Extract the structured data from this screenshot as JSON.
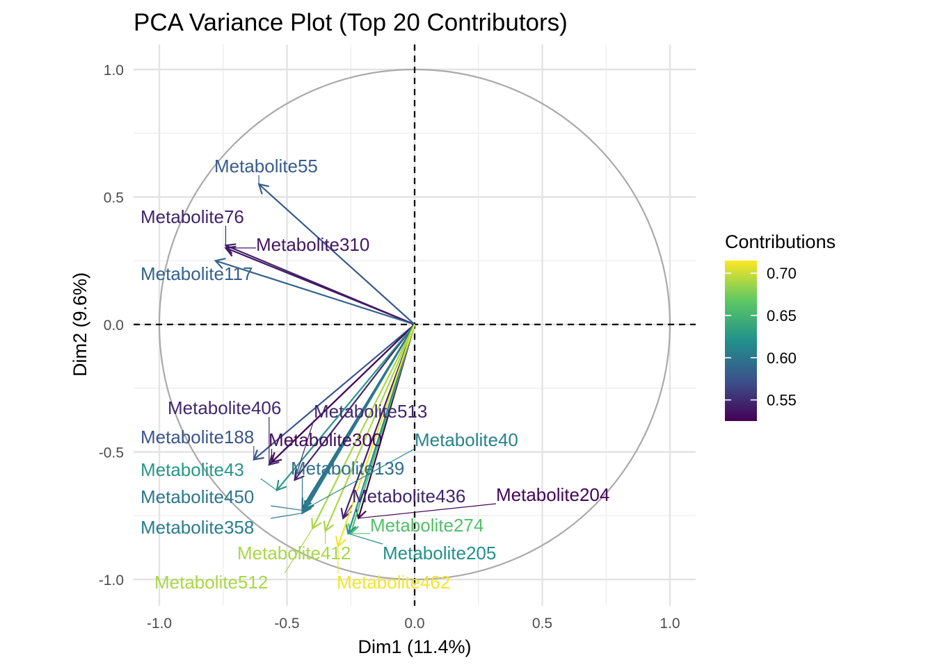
{
  "chart_data": {
    "type": "scatter",
    "subtype": "pca-variable-correlation-circle",
    "title": "PCA Variance Plot (Top 20 Contributors)",
    "xlabel": "Dim1 (11.4%)",
    "ylabel": "Dim2 (9.6%)",
    "xlim": [
      -1.0,
      1.0
    ],
    "ylim": [
      -1.0,
      1.0
    ],
    "x_ticks": [
      -1.0,
      -0.5,
      0.0,
      0.5,
      1.0
    ],
    "y_ticks": [
      -1.0,
      -0.5,
      0.0,
      0.5,
      1.0
    ],
    "x_tick_labels": [
      "-1.0",
      "-0.5",
      "0.0",
      "0.5",
      "1.0"
    ],
    "y_tick_labels": [
      "-1.0",
      "-0.5",
      "0.0",
      "0.5",
      "1.0"
    ],
    "grid": true,
    "unit_circle": true,
    "reference_lines": "dashed at x=0 and y=0",
    "legend": {
      "title": "Contributions",
      "placement": "right",
      "type": "colorbar",
      "ticks": [
        0.55,
        0.6,
        0.65,
        0.7
      ],
      "tick_labels": [
        "0.55",
        "0.60",
        "0.65",
        "0.70"
      ],
      "range": [
        0.525,
        0.715
      ],
      "colormap": [
        "#440154",
        "#3b528b",
        "#21908c",
        "#5dc863",
        "#fde725"
      ]
    },
    "points": [
      {
        "label": "Metabolite55",
        "x": -0.61,
        "y": 0.55,
        "contrib": 0.58
      },
      {
        "label": "Metabolite76",
        "x": -0.74,
        "y": 0.31,
        "contrib": 0.545
      },
      {
        "label": "Metabolite310",
        "x": -0.74,
        "y": 0.3,
        "contrib": 0.538
      },
      {
        "label": "Metabolite117",
        "x": -0.78,
        "y": 0.25,
        "contrib": 0.585
      },
      {
        "label": "Metabolite406",
        "x": -0.57,
        "y": -0.55,
        "contrib": 0.548
      },
      {
        "label": "Metabolite513",
        "x": -0.47,
        "y": -0.61,
        "contrib": 0.548
      },
      {
        "label": "Metabolite188",
        "x": -0.63,
        "y": -0.53,
        "contrib": 0.575
      },
      {
        "label": "Metabolite300",
        "x": -0.56,
        "y": -0.54,
        "contrib": 0.53
      },
      {
        "label": "Metabolite40",
        "x": -0.44,
        "y": -0.73,
        "contrib": 0.61
      },
      {
        "label": "Metabolite43",
        "x": -0.54,
        "y": -0.65,
        "contrib": 0.625
      },
      {
        "label": "Metabolite139",
        "x": -0.44,
        "y": -0.72,
        "contrib": 0.595
      },
      {
        "label": "Metabolite450",
        "x": -0.43,
        "y": -0.73,
        "contrib": 0.6
      },
      {
        "label": "Metabolite436",
        "x": -0.28,
        "y": -0.76,
        "contrib": 0.545
      },
      {
        "label": "Metabolite204",
        "x": -0.22,
        "y": -0.76,
        "contrib": 0.528
      },
      {
        "label": "Metabolite358",
        "x": -0.44,
        "y": -0.74,
        "contrib": 0.605
      },
      {
        "label": "Metabolite274",
        "x": -0.25,
        "y": -0.82,
        "contrib": 0.66
      },
      {
        "label": "Metabolite412",
        "x": -0.35,
        "y": -0.81,
        "contrib": 0.69
      },
      {
        "label": "Metabolite205",
        "x": -0.26,
        "y": -0.82,
        "contrib": 0.62
      },
      {
        "label": "Metabolite512",
        "x": -0.4,
        "y": -0.8,
        "contrib": 0.69
      },
      {
        "label": "Metabolite462",
        "x": -0.3,
        "y": -0.87,
        "contrib": 0.712
      }
    ]
  }
}
